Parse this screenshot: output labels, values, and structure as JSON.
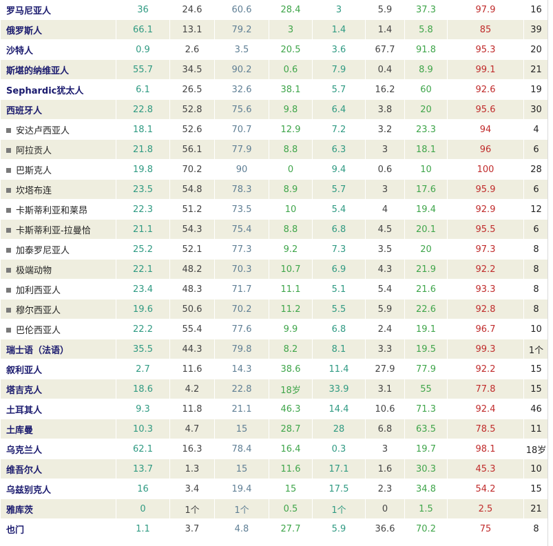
{
  "rows": [
    {
      "name": "罗马尼亚人",
      "sub": false,
      "c1": "36",
      "c2": "24.6",
      "c3": "60.6",
      "c4": "28.4",
      "c5": "3",
      "c6": "5.9",
      "c7": "37.3",
      "c8": "97.9",
      "c9": "16"
    },
    {
      "name": "俄罗斯人",
      "sub": false,
      "c1": "66.1",
      "c2": "13.1",
      "c3": "79.2",
      "c4": "3",
      "c5": "1.4",
      "c6": "1.4",
      "c7": "5.8",
      "c8": "85",
      "c9": "39"
    },
    {
      "name": "沙特人",
      "sub": false,
      "c1": "0.9",
      "c2": "2.6",
      "c3": "3.5",
      "c4": "20.5",
      "c5": "3.6",
      "c6": "67.7",
      "c7": "91.8",
      "c8": "95.3",
      "c9": "20"
    },
    {
      "name": "斯堪的纳维亚人",
      "sub": false,
      "c1": "55.7",
      "c2": "34.5",
      "c3": "90.2",
      "c4": "0.6",
      "c5": "7.9",
      "c6": "0.4",
      "c7": "8.9",
      "c8": "99.1",
      "c9": "21"
    },
    {
      "name": "Sephardic犹太人",
      "sub": false,
      "c1": "6.1",
      "c2": "26.5",
      "c3": "32.6",
      "c4": "38.1",
      "c5": "5.7",
      "c6": "16.2",
      "c7": "60",
      "c8": "92.6",
      "c9": "19"
    },
    {
      "name": "西班牙人",
      "sub": false,
      "c1": "22.8",
      "c2": "52.8",
      "c3": "75.6",
      "c4": "9.8",
      "c5": "6.4",
      "c6": "3.8",
      "c7": "20",
      "c8": "95.6",
      "c9": "30"
    },
    {
      "name": "安达卢西亚人",
      "sub": true,
      "c1": "18.1",
      "c2": "52.6",
      "c3": "70.7",
      "c4": "12.9",
      "c5": "7.2",
      "c6": "3.2",
      "c7": "23.3",
      "c8": "94",
      "c9": "4"
    },
    {
      "name": "阿拉贡人",
      "sub": true,
      "c1": "21.8",
      "c2": "56.1",
      "c3": "77.9",
      "c4": "8.8",
      "c5": "6.3",
      "c6": "3",
      "c7": "18.1",
      "c8": "96",
      "c9": "6"
    },
    {
      "name": "巴斯克人",
      "sub": true,
      "c1": "19.8",
      "c2": "70.2",
      "c3": "90",
      "c4": "0",
      "c5": "9.4",
      "c6": "0.6",
      "c7": "10",
      "c8": "100",
      "c9": "28"
    },
    {
      "name": "坎塔布连",
      "sub": true,
      "c1": "23.5",
      "c2": "54.8",
      "c3": "78.3",
      "c4": "8.9",
      "c5": "5.7",
      "c6": "3",
      "c7": "17.6",
      "c8": "95.9",
      "c9": "6"
    },
    {
      "name": "卡斯蒂利亚和莱昂",
      "sub": true,
      "c1": "22.3",
      "c2": "51.2",
      "c3": "73.5",
      "c4": "10",
      "c5": "5.4",
      "c6": "4",
      "c7": "19.4",
      "c8": "92.9",
      "c9": "12"
    },
    {
      "name": "卡斯蒂利亚-拉曼恰",
      "sub": true,
      "c1": "21.1",
      "c2": "54.3",
      "c3": "75.4",
      "c4": "8.8",
      "c5": "6.8",
      "c6": "4.5",
      "c7": "20.1",
      "c8": "95.5",
      "c9": "6"
    },
    {
      "name": "加泰罗尼亚人",
      "sub": true,
      "c1": "25.2",
      "c2": "52.1",
      "c3": "77.3",
      "c4": "9.2",
      "c5": "7.3",
      "c6": "3.5",
      "c7": "20",
      "c8": "97.3",
      "c9": "8"
    },
    {
      "name": "极端动物",
      "sub": true,
      "c1": "22.1",
      "c2": "48.2",
      "c3": "70.3",
      "c4": "10.7",
      "c5": "6.9",
      "c6": "4.3",
      "c7": "21.9",
      "c8": "92.2",
      "c9": "8"
    },
    {
      "name": "加利西亚人",
      "sub": true,
      "c1": "23.4",
      "c2": "48.3",
      "c3": "71.7",
      "c4": "11.1",
      "c5": "5.1",
      "c6": "5.4",
      "c7": "21.6",
      "c8": "93.3",
      "c9": "8"
    },
    {
      "name": "穆尔西亚人",
      "sub": true,
      "c1": "19.6",
      "c2": "50.6",
      "c3": "70.2",
      "c4": "11.2",
      "c5": "5.5",
      "c6": "5.9",
      "c7": "22.6",
      "c8": "92.8",
      "c9": "8"
    },
    {
      "name": "巴伦西亚人",
      "sub": true,
      "c1": "22.2",
      "c2": "55.4",
      "c3": "77.6",
      "c4": "9.9",
      "c5": "6.8",
      "c6": "2.4",
      "c7": "19.1",
      "c8": "96.7",
      "c9": "10"
    },
    {
      "name": "瑞士语（法语）",
      "sub": false,
      "c1": "35.5",
      "c2": "44.3",
      "c3": "79.8",
      "c4": "8.2",
      "c5": "8.1",
      "c6": "3.3",
      "c7": "19.5",
      "c8": "99.3",
      "c9": "1个"
    },
    {
      "name": "叙利亚人",
      "sub": false,
      "c1": "2.7",
      "c2": "11.6",
      "c3": "14.3",
      "c4": "38.6",
      "c5": "11.4",
      "c6": "27.9",
      "c7": "77.9",
      "c8": "92.2",
      "c9": "15"
    },
    {
      "name": "塔吉克人",
      "sub": false,
      "c1": "18.6",
      "c2": "4.2",
      "c3": "22.8",
      "c4": "18岁",
      "c5": "33.9",
      "c6": "3.1",
      "c7": "55",
      "c8": "77.8",
      "c9": "15"
    },
    {
      "name": "土耳其人",
      "sub": false,
      "c1": "9.3",
      "c2": "11.8",
      "c3": "21.1",
      "c4": "46.3",
      "c5": "14.4",
      "c6": "10.6",
      "c7": "71.3",
      "c8": "92.4",
      "c9": "46"
    },
    {
      "name": "土库曼",
      "sub": false,
      "c1": "10.3",
      "c2": "4.7",
      "c3": "15",
      "c4": "28.7",
      "c5": "28",
      "c6": "6.8",
      "c7": "63.5",
      "c8": "78.5",
      "c9": "11"
    },
    {
      "name": "乌克兰人",
      "sub": false,
      "c1": "62.1",
      "c2": "16.3",
      "c3": "78.4",
      "c4": "16.4",
      "c5": "0.3",
      "c6": "3",
      "c7": "19.7",
      "c8": "98.1",
      "c9": "18岁"
    },
    {
      "name": "维吾尔人",
      "sub": false,
      "c1": "13.7",
      "c2": "1.3",
      "c3": "15",
      "c4": "11.6",
      "c5": "17.1",
      "c6": "1.6",
      "c7": "30.3",
      "c8": "45.3",
      "c9": "10"
    },
    {
      "name": "乌兹别克人",
      "sub": false,
      "c1": "16",
      "c2": "3.4",
      "c3": "19.4",
      "c4": "15",
      "c5": "17.5",
      "c6": "2.3",
      "c7": "34.8",
      "c8": "54.2",
      "c9": "15"
    },
    {
      "name": "雅库茨",
      "sub": false,
      "c1": "0",
      "c2": "1个",
      "c3": "1个",
      "c4": "0.5",
      "c5": "1个",
      "c6": "0",
      "c7": "1.5",
      "c8": "2.5",
      "c9": "21"
    },
    {
      "name": "也门",
      "sub": false,
      "c1": "1.1",
      "c2": "3.7",
      "c3": "4.8",
      "c4": "27.7",
      "c5": "5.9",
      "c6": "36.6",
      "c7": "70.2",
      "c8": "75",
      "c9": "8"
    }
  ]
}
